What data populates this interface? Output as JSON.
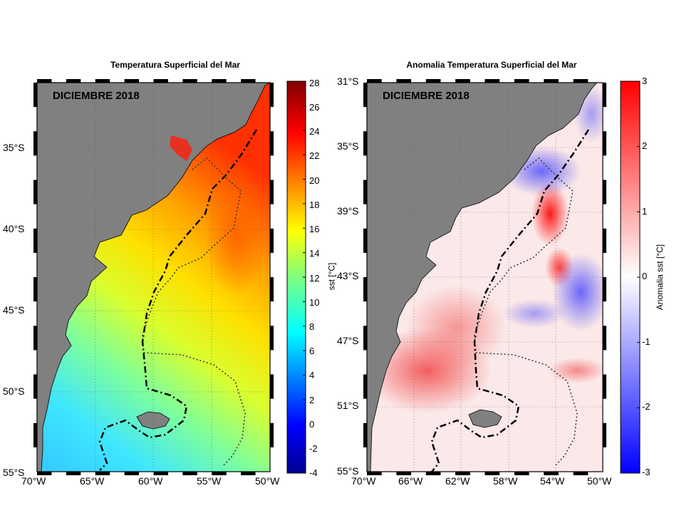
{
  "left_panel": {
    "title": "Temperatura Superficial del Mar",
    "date_label": "DICIEMBRE 2018",
    "lat_ticks": [
      "35°S",
      "40°S",
      "45°S",
      "50°S",
      "55°S"
    ],
    "lon_ticks": [
      "70°W",
      "65°W",
      "60°W",
      "55°W",
      "50°W"
    ],
    "colorbar": {
      "label": "sst [°C]",
      "ticks": [
        "28",
        "26",
        "24",
        "22",
        "20",
        "18",
        "16",
        "14",
        "12",
        "10",
        "8",
        "6",
        "4",
        "2",
        "0",
        "-2",
        "-4"
      ],
      "min": -4,
      "max": 28
    }
  },
  "right_panel": {
    "title": "Anomalia Temperatura  Superficial del Mar",
    "date_label": "DICIEMBRE 2018",
    "lat_ticks": [
      "31°S",
      "35°S",
      "39°S",
      "43°S",
      "47°S",
      "51°S",
      "55°S"
    ],
    "lon_ticks": [
      "70°W",
      "66°W",
      "62°W",
      "58°W",
      "54°W",
      "50°W"
    ],
    "colorbar": {
      "label": "Anomalia sst [°C]",
      "ticks": [
        "3",
        "2",
        "1",
        "0",
        "-1",
        "-2",
        "-3"
      ],
      "min": -3,
      "max": 3
    }
  },
  "colors": {
    "land": "#808080",
    "frame": "#000000",
    "sst_cold": "#0000aa",
    "sst_warm": "#800000",
    "anom_neg": "#0000ff",
    "anom_pos": "#ff0000"
  }
}
